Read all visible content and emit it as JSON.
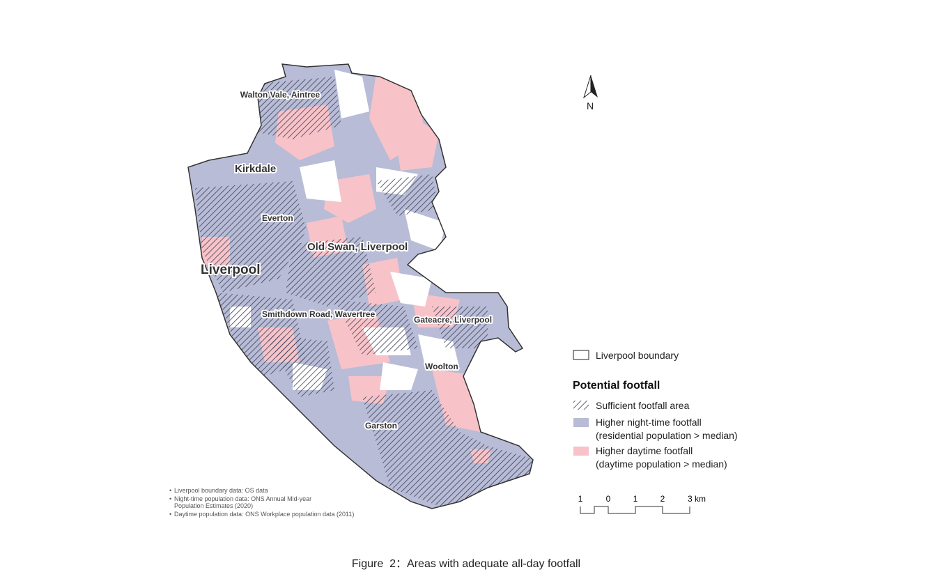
{
  "north_arrow": "N",
  "place_labels": [
    "Walton Vale, Aintree",
    "Kirkdale",
    "Everton",
    "Old Swan, Liverpool",
    "Liverpool",
    "Smithdown Road, Wavertree",
    "Gateacre, Liverpool",
    "Woolton",
    "Garston"
  ],
  "legend": {
    "boundary": "Liverpool boundary",
    "title": "Potential footfall",
    "items": [
      {
        "label": "Sufficient footfall area"
      },
      {
        "label": "Higher night-time footfall",
        "sublabel": "(residential population > median)"
      },
      {
        "label": "Higher daytime footfall",
        "sublabel": "(daytime population > median)"
      }
    ]
  },
  "scale_bar": [
    "1",
    "0",
    "1",
    "2",
    "3 km"
  ],
  "notes": [
    [
      "Liverpool boundary data: OS data"
    ],
    [
      "Night-time population data: ONS Annual Mid-year",
      "Population Estimates (2020)"
    ],
    [
      "Daytime population data: ONS Workplace population data (2011)"
    ]
  ],
  "caption": "Figure  2：Areas with adequate all-day footfall"
}
